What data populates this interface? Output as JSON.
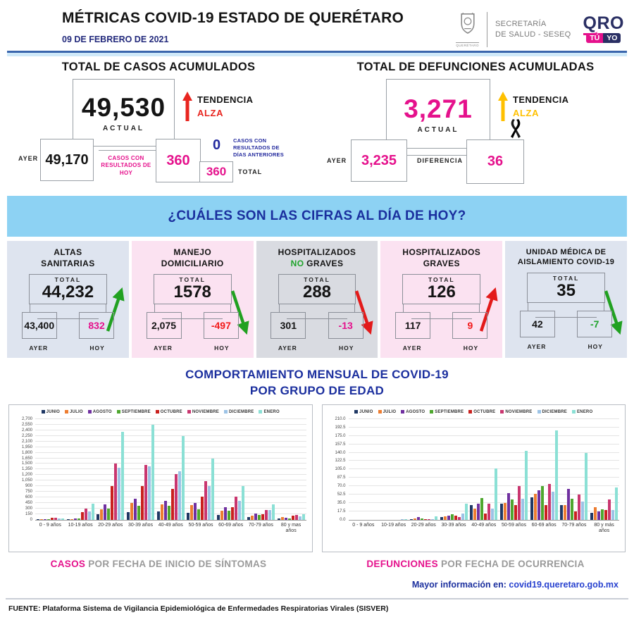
{
  "header": {
    "title": "MÉTRICAS COVID-19 ESTADO DE QUERÉTARO",
    "date": "09 DE FEBRERO DE 2021",
    "secretaria_line1": "SECRETARÍA",
    "secretaria_line2": "DE SALUD - SESEQ",
    "crest_caption": "QUERÉTARO",
    "logo_qro": "QRO",
    "logo_tu": "TÚ",
    "logo_yo": "YO"
  },
  "cases": {
    "title": "TOTAL DE CASOS ACUMULADOS",
    "actual_value": "49,530",
    "actual_label": "ACTUAL",
    "trend_label": "TENDENCIA",
    "trend_value": "ALZA",
    "trend_color": "#E8251F",
    "ayer_label": "AYER",
    "ayer_value": "49,170",
    "today_note": "CASOS CON RESULTADOS DE HOY",
    "today_value": "360",
    "previous_value": "0",
    "previous_note_l1": "CASOS CON",
    "previous_note_l2": "RESULTADOS DE",
    "previous_note_l3": "DÍAS ANTERIORES",
    "total_value": "360",
    "total_label": "TOTAL"
  },
  "deaths": {
    "title": "TOTAL DE DEFUNCIONES ACUMULADAS",
    "actual_value": "3,271",
    "actual_label": "ACTUAL",
    "trend_label": "TENDENCIA",
    "trend_value": "ALZA",
    "trend_color": "#FFC000",
    "ayer_label": "AYER",
    "ayer_value": "3,235",
    "diff_label": "DIFERENCIA",
    "diff_value": "36"
  },
  "banner": {
    "text": "¿CUÁLES SON LAS CIFRAS AL DÍA DE HOY?"
  },
  "cards": [
    {
      "title_line1": "ALTAS",
      "title_line2_accent": "",
      "title_line2": "SANITARIAS",
      "total_label": "TOTAL",
      "total": "44,232",
      "ayer": "43,400",
      "hoy": "832",
      "ayer_label": "AYER",
      "hoy_label": "HOY",
      "hoy_color": "#E5118C",
      "arrow_dir": "up",
      "arrow_color": "#21A121",
      "bg": "#DEE4EF"
    },
    {
      "title_line1": "MANEJO",
      "title_line2_accent": "",
      "title_line2": "DOMICILIARIO",
      "total_label": "TOTAL",
      "total": "1578",
      "ayer": "2,075",
      "hoy": "-497",
      "ayer_label": "AYER",
      "hoy_label": "HOY",
      "hoy_color": "#F21A1A",
      "arrow_dir": "down",
      "arrow_color": "#21A121",
      "bg": "#FBE2F1"
    },
    {
      "title_line1": "HOSPITALIZADOS",
      "title_line2_accent": "NO",
      "title_line2": " GRAVES",
      "total_label": "TOTAL",
      "total": "288",
      "ayer": "301",
      "hoy": "-13",
      "ayer_label": "AYER",
      "hoy_label": "HOY",
      "hoy_color": "#E5118C",
      "arrow_dir": "down",
      "arrow_color": "#E31A1A",
      "bg": "#D9DBE1"
    },
    {
      "title_line1": "HOSPITALIZADOS",
      "title_line2_accent": "",
      "title_line2": "GRAVES",
      "total_label": "TOTAL",
      "total": "126",
      "ayer": "117",
      "hoy": "9",
      "ayer_label": "AYER",
      "hoy_label": "HOY",
      "hoy_color": "#F21A1A",
      "arrow_dir": "up",
      "arrow_color": "#E31A1A",
      "bg": "#FBE2F1"
    },
    {
      "title_line1": "UNIDAD MÉDICA DE",
      "title_line2_accent": "",
      "title_line2": "AISLAMIENTO COVID-19",
      "total_label": "TOTAL",
      "total": "35",
      "ayer": "42",
      "hoy": "-7",
      "ayer_label": "AYER",
      "hoy_label": "HOY",
      "hoy_color": "#1FA32B",
      "arrow_dir": "down",
      "arrow_color": "#21A121",
      "bg": "#DEE4EF"
    }
  ],
  "charts_section": {
    "title_line1": "COMPORTAMIENTO MENSUAL DE COVID-19",
    "title_line2": "POR GRUPO DE EDAD",
    "left_caption_accent": "CASOS",
    "left_caption_rest": " POR FECHA DE INICIO DE SÍNTOMAS",
    "right_caption_accent": "DEFUNCIONES",
    "right_caption_rest": " POR FECHA DE OCURRENCIA",
    "info_label": "Mayor información en: ",
    "info_link": "covid19.queretaro.gob.mx"
  },
  "footer": {
    "source": "FUENTE: Plataforma Sistema  de Vigilancia Epidemiológica de Enfermedades Respiratorias Virales (SISVER)"
  },
  "chart_data": [
    {
      "type": "bar",
      "title": "CASOS POR FECHA DE INICIO DE SÍNTOMAS",
      "xlabel": "",
      "ylabel": "",
      "grid": true,
      "legend_position": "top",
      "ylim": [
        0,
        2700
      ],
      "ytick_step": 150,
      "ytick_format": "int",
      "categories": [
        "0 - 9 años",
        "10-19 años",
        "20-29 años",
        "30-39 años",
        "40-49 años",
        "50-59 años",
        "60-69 años",
        "70-79 años",
        "80 y mas años"
      ],
      "series": [
        {
          "name": "JUNIO",
          "color": "#1F3864",
          "values": [
            8,
            12,
            140,
            200,
            230,
            195,
            130,
            80,
            30
          ]
        },
        {
          "name": "JULIO",
          "color": "#ED7D31",
          "values": [
            12,
            18,
            275,
            460,
            410,
            390,
            250,
            110,
            65
          ]
        },
        {
          "name": "AGOSTO",
          "color": "#7030A0",
          "values": [
            12,
            40,
            415,
            560,
            500,
            455,
            340,
            175,
            50
          ]
        },
        {
          "name": "SEPTIEMBRE",
          "color": "#4EA72E",
          "values": [
            10,
            40,
            295,
            380,
            370,
            280,
            240,
            130,
            45
          ]
        },
        {
          "name": "OCTUBRE",
          "color": "#C9211E",
          "values": [
            60,
            200,
            900,
            910,
            820,
            630,
            345,
            150,
            105
          ]
        },
        {
          "name": "NOVIEMBRE",
          "color": "#C9366F",
          "values": [
            55,
            295,
            1500,
            1480,
            1230,
            1040,
            620,
            260,
            125
          ]
        },
        {
          "name": "DICIEMBRE",
          "color": "#9DC3E6",
          "values": [
            30,
            220,
            1400,
            1440,
            1310,
            900,
            500,
            270,
            100
          ]
        },
        {
          "name": "ENERO",
          "color": "#8BE0D5",
          "values": [
            40,
            430,
            2350,
            2550,
            2250,
            1640,
            910,
            410,
            150
          ]
        }
      ]
    },
    {
      "type": "bar",
      "title": "DEFUNCIONES POR FECHA DE OCURRENCIA",
      "xlabel": "",
      "ylabel": "",
      "grid": true,
      "legend_position": "top",
      "ylim": [
        0,
        210
      ],
      "ytick_step": 17.5,
      "ytick_format": "1dp",
      "categories": [
        "0 - 9 años",
        "10-19 años",
        "20-29 años",
        "30-39 años",
        "40-49 años",
        "50-59 años",
        "60-69 años",
        "70-79 años",
        "80 y más años"
      ],
      "series": [
        {
          "name": "JUNIO",
          "color": "#1F3864",
          "values": [
            0,
            0,
            2,
            6,
            31,
            34,
            47,
            30,
            14
          ]
        },
        {
          "name": "JULIO",
          "color": "#ED7D31",
          "values": [
            0,
            0,
            3,
            7,
            23,
            35,
            54,
            31,
            27
          ]
        },
        {
          "name": "AGOSTO",
          "color": "#7030A0",
          "values": [
            0,
            0,
            5,
            8,
            33,
            56,
            62,
            64,
            17
          ]
        },
        {
          "name": "SEPTIEMBRE",
          "color": "#4EA72E",
          "values": [
            0,
            0,
            3,
            11,
            45,
            42,
            70,
            44,
            22
          ]
        },
        {
          "name": "OCTUBRE",
          "color": "#C9211E",
          "values": [
            0,
            0,
            2,
            8,
            13,
            30,
            30,
            17,
            20
          ]
        },
        {
          "name": "NOVIEMBRE",
          "color": "#C9366F",
          "values": [
            0,
            0,
            2,
            6,
            33,
            70,
            75,
            52,
            43
          ]
        },
        {
          "name": "DICIEMBRE",
          "color": "#9DC3E6",
          "values": [
            0,
            1,
            2,
            13,
            23,
            44,
            58,
            38,
            20
          ]
        },
        {
          "name": "ENERO",
          "color": "#8BE0D5",
          "values": [
            0,
            1,
            7,
            34,
            107,
            144,
            186,
            139,
            68
          ]
        }
      ]
    }
  ]
}
